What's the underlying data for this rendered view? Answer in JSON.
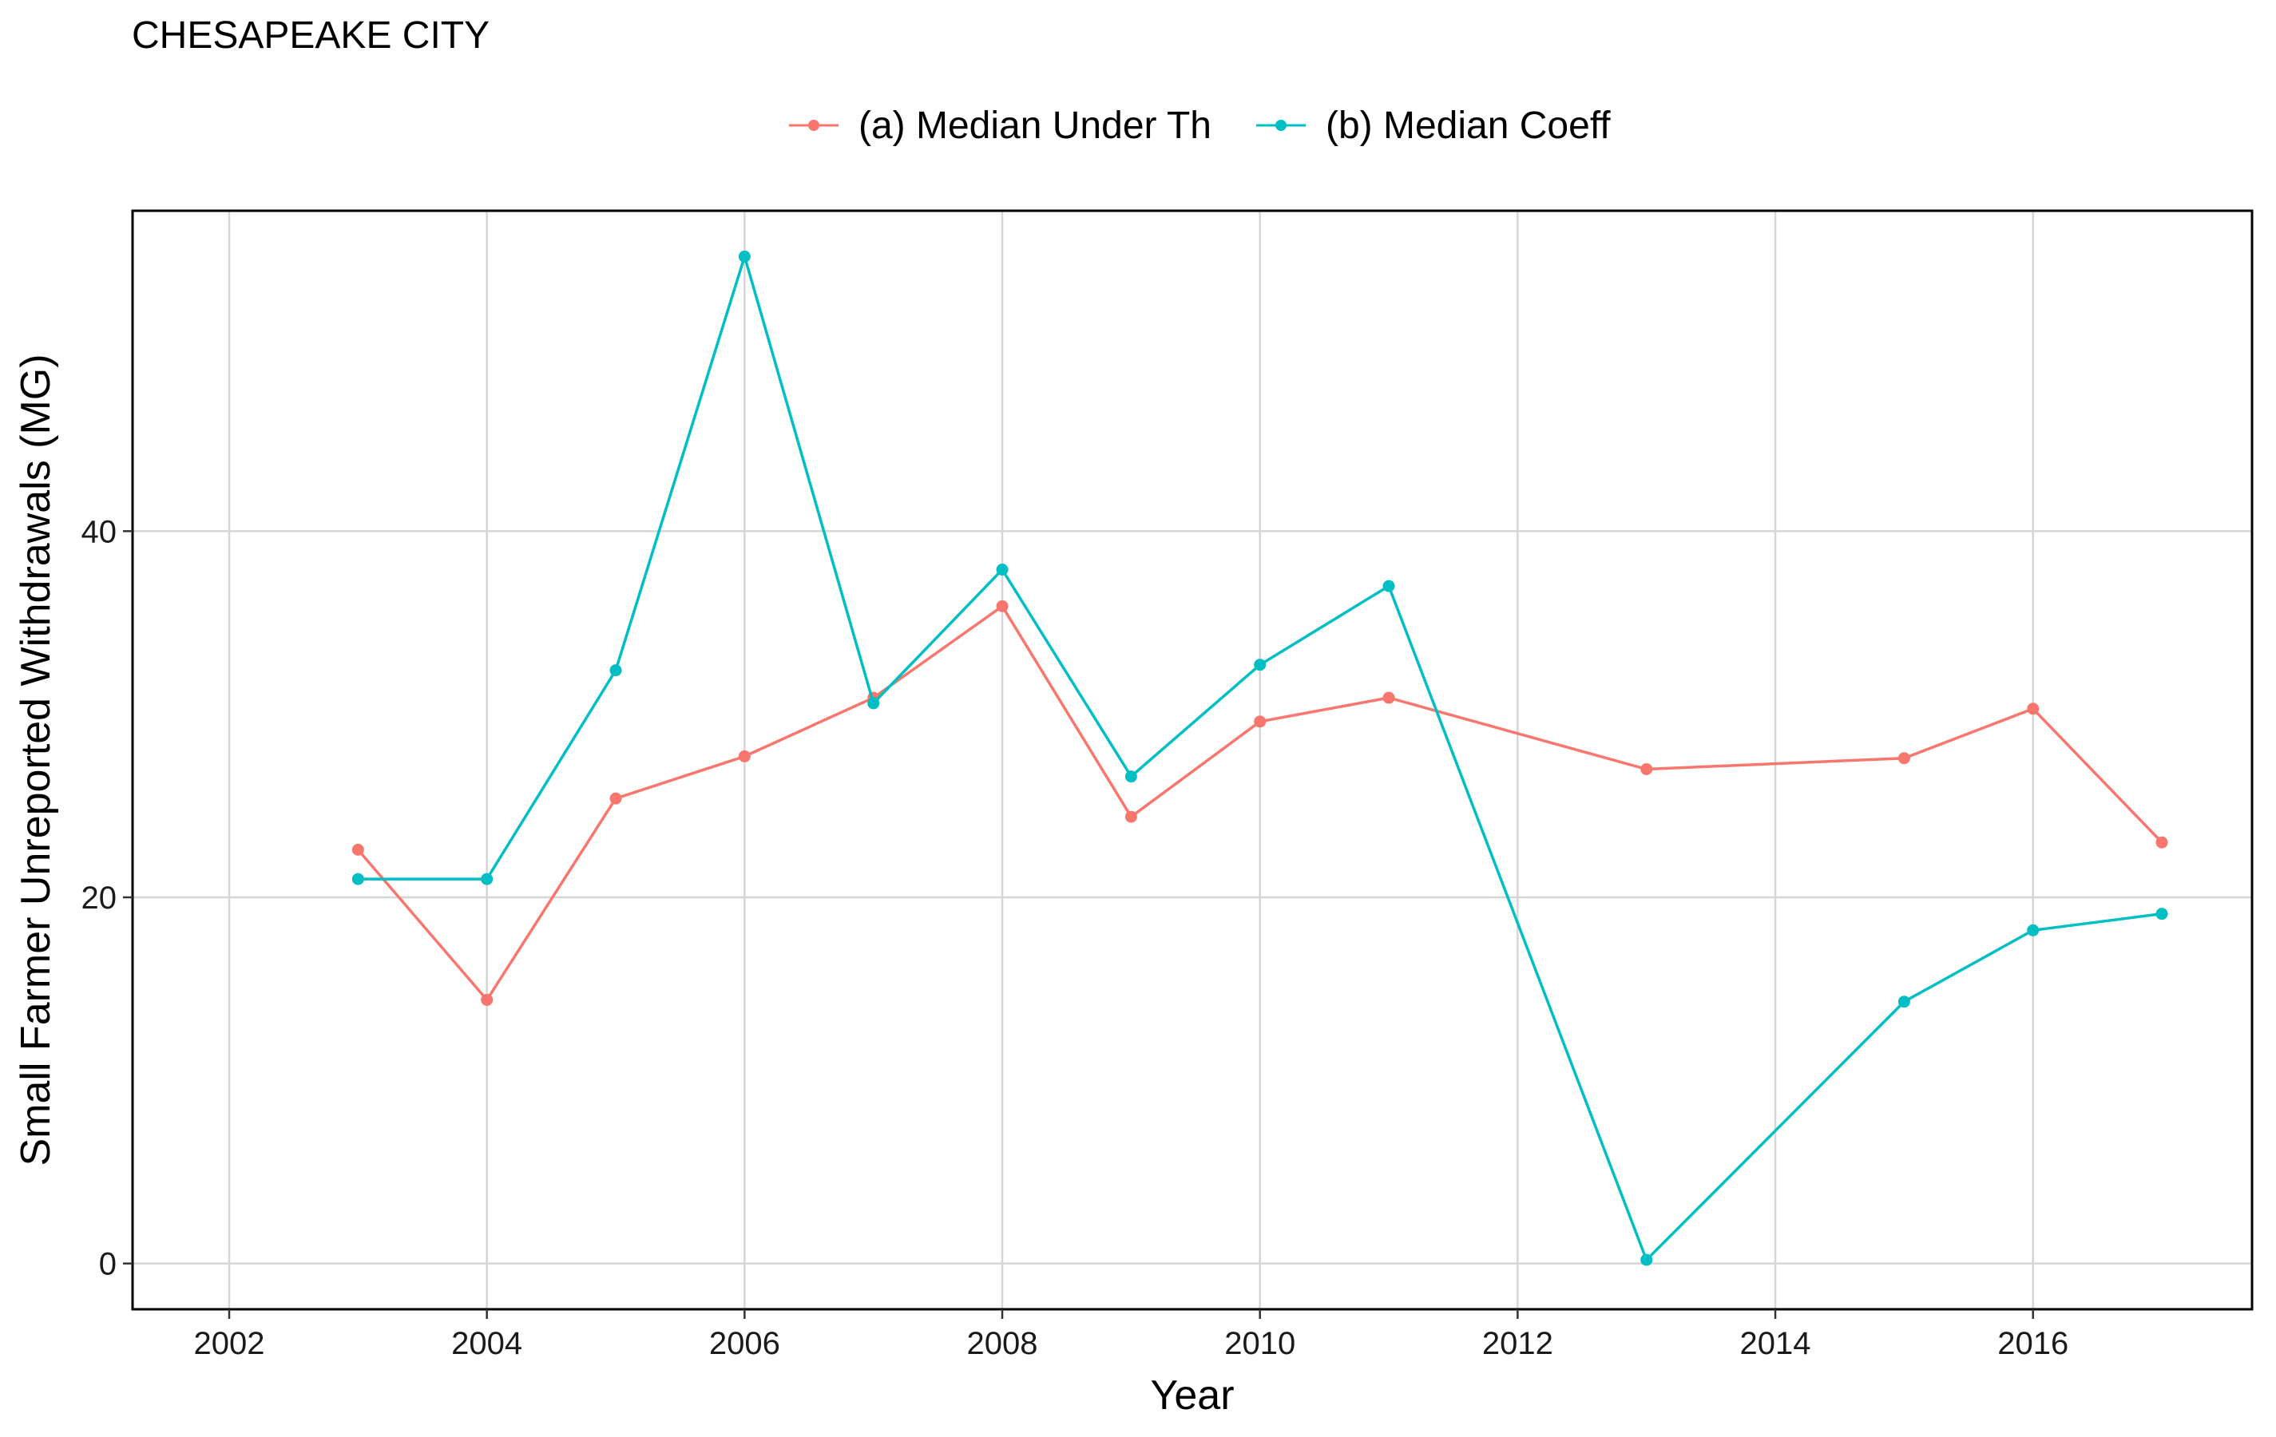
{
  "chart_data": {
    "type": "line",
    "title": "CHESAPEAKE CITY",
    "xlabel": "Year",
    "ylabel": "Small Farmer Unreported Withdrawals (MG)",
    "xlim": [
      2001.25,
      2017.7
    ],
    "ylim": [
      -2.5,
      57.5
    ],
    "x_ticks": [
      2002,
      2004,
      2006,
      2008,
      2010,
      2012,
      2014,
      2016
    ],
    "y_ticks": [
      0,
      20,
      40
    ],
    "grid": true,
    "legend_position": "top",
    "series": [
      {
        "name": "(a) Median Under Th",
        "color": "#F8766D",
        "points": [
          [
            2003,
            22.6
          ],
          [
            2004,
            14.4
          ],
          [
            2005,
            25.4
          ],
          [
            2006,
            27.7
          ],
          [
            2007,
            30.9
          ],
          [
            2008,
            35.9
          ],
          [
            2009,
            24.4
          ],
          [
            2010,
            29.6
          ],
          [
            2011,
            30.9
          ],
          [
            2013,
            27.0
          ],
          [
            2015,
            27.6
          ],
          [
            2016,
            30.3
          ],
          [
            2017,
            23.0
          ]
        ]
      },
      {
        "name": "(b) Median Coeff",
        "color": "#00BFC4",
        "points": [
          [
            2003,
            21.0
          ],
          [
            2004,
            21.0
          ],
          [
            2005,
            32.4
          ],
          [
            2006,
            55.0
          ],
          [
            2007,
            30.6
          ],
          [
            2008,
            37.9
          ],
          [
            2009,
            26.6
          ],
          [
            2010,
            32.7
          ],
          [
            2011,
            37.0
          ],
          [
            2013,
            0.2
          ],
          [
            2015,
            14.3
          ],
          [
            2016,
            18.2
          ],
          [
            2017,
            19.1
          ]
        ]
      }
    ]
  }
}
